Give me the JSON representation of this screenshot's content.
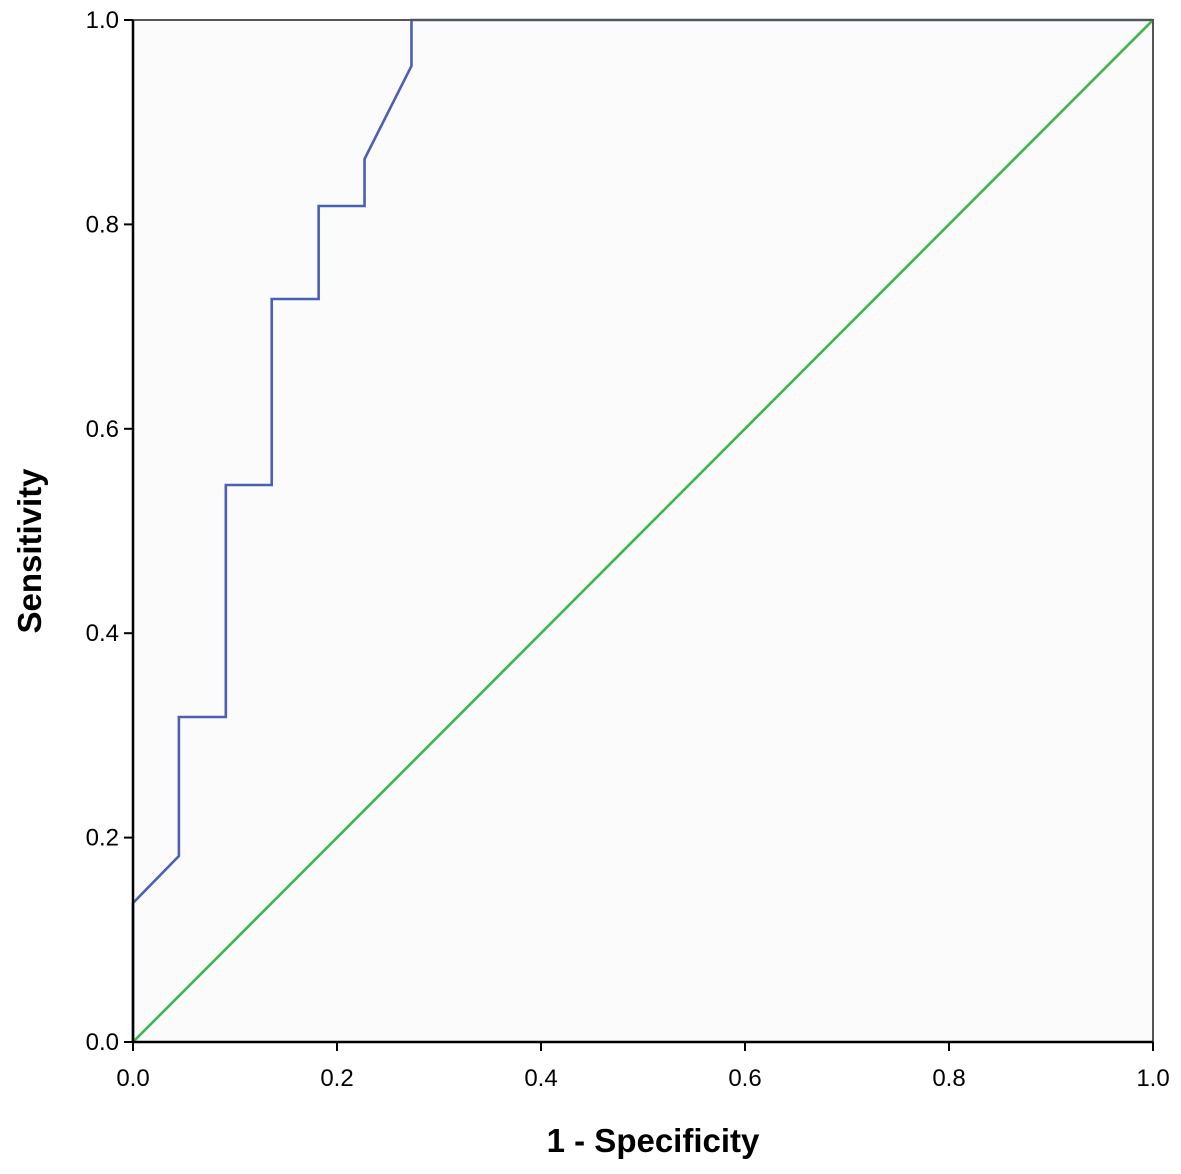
{
  "chart_data": {
    "type": "line",
    "xlabel": "1 - Specificity",
    "ylabel": "Sensitivity",
    "xlim": [
      0,
      1
    ],
    "ylim": [
      0,
      1
    ],
    "xticks": [
      "0.0",
      "0.2",
      "0.4",
      "0.6",
      "0.8",
      "1.0"
    ],
    "yticks": [
      "0.0",
      "0.2",
      "0.4",
      "0.6",
      "0.8",
      "1.0"
    ],
    "grid": false,
    "background_color": "#fbfbfb",
    "series": [
      {
        "color": "#4a5fb5",
        "x": [
          0,
          0,
          0.045,
          0.045,
          0.091,
          0.091,
          0.136,
          0.136,
          0.182,
          0.182,
          0.227,
          0.227,
          0.273,
          0.273,
          1.0
        ],
        "y": [
          0,
          0.136,
          0.182,
          0.318,
          0.318,
          0.545,
          0.545,
          0.727,
          0.727,
          0.818,
          0.818,
          0.864,
          0.955,
          1.0,
          1.0
        ]
      },
      {
        "color": "#3db64a",
        "x": [
          0,
          1
        ],
        "y": [
          0,
          1
        ]
      }
    ]
  }
}
